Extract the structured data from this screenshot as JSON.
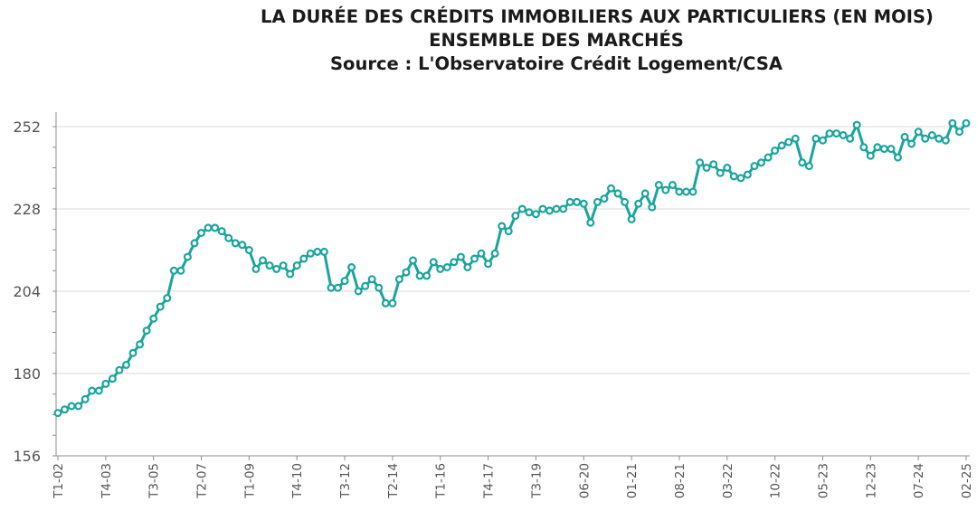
{
  "header": {
    "title_line1": "LA DURÉE DES CRÉDITS IMMOBILIERS AUX PARTICULIERS (EN MOIS)",
    "title_line2": "ENSEMBLE DES MARCHÉS",
    "title_line3": "Source : L'Observatoire Crédit Logement/CSA"
  },
  "colors": {
    "series": "#1aa59c",
    "grid": "#d9d9d9",
    "axis": "#8c8c8c"
  },
  "chart_data": {
    "type": "line",
    "title": "LA DURÉE DES CRÉDITS IMMOBILIERS AUX PARTICULIERS (EN MOIS)",
    "subtitle": "ENSEMBLE DES MARCHÉS",
    "xlabel": "",
    "ylabel": "",
    "ylim": [
      156,
      252
    ],
    "yticks": [
      156,
      180,
      204,
      228,
      252
    ],
    "grid": true,
    "legend": "none",
    "x_tick_labels": [
      "T1-02",
      "T4-03",
      "T3-05",
      "T2-07",
      "T1-09",
      "T4-10",
      "T3-12",
      "T2-14",
      "T1-16",
      "T4-17",
      "T3-19",
      "06-20",
      "01-21",
      "08-21",
      "03-22",
      "10-22",
      "05-23",
      "12-23",
      "07-24",
      "02-25"
    ],
    "series": [
      {
        "values": [
          168.5,
          169.5,
          170.5,
          170.5,
          172.5,
          175.0,
          175.0,
          177.0,
          178.5,
          181.0,
          182.5,
          186.0,
          188.5,
          192.5,
          196.0,
          199.5,
          202.0,
          210.0,
          210.0,
          214.0,
          218.0,
          221.0,
          222.5,
          222.5,
          221.5,
          219.5,
          218.0,
          217.5,
          216.0,
          210.5,
          213.0,
          211.5,
          210.5,
          211.5,
          209.0,
          211.5,
          213.5,
          215.0,
          215.5,
          215.5,
          205.0,
          205.0,
          207.0,
          211.0,
          204.0,
          205.5,
          207.5,
          205.0,
          200.5,
          200.5,
          207.5,
          209.5,
          213.0,
          208.5,
          208.5,
          212.5,
          210.5,
          211.0,
          212.5,
          214.0,
          211.0,
          213.5,
          215.0,
          212.0,
          215.0,
          223.0,
          221.5,
          226.0,
          228.0,
          227.0,
          226.5,
          228.0,
          227.5,
          228.0,
          228.0,
          230.0,
          230.0,
          229.5,
          224.0,
          230.0,
          231.0,
          234.0,
          232.5,
          230.0,
          225.0,
          229.5,
          232.5,
          228.5,
          235.0,
          233.5,
          235.0,
          233.0,
          233.0,
          233.0,
          241.5,
          240.0,
          241.0,
          238.5,
          240.0,
          237.5,
          237.0,
          238.0,
          240.5,
          241.5,
          243.0,
          245.0,
          246.5,
          247.5,
          248.5,
          241.5,
          240.5,
          248.5,
          248.0,
          250.0,
          250.0,
          249.5,
          248.5,
          252.5,
          246.0,
          243.5,
          246.0,
          245.5,
          245.5,
          243.0,
          249.0,
          247.0,
          250.5,
          248.5,
          249.5,
          248.5,
          248.0,
          253.0,
          250.5,
          253.0
        ]
      }
    ]
  }
}
